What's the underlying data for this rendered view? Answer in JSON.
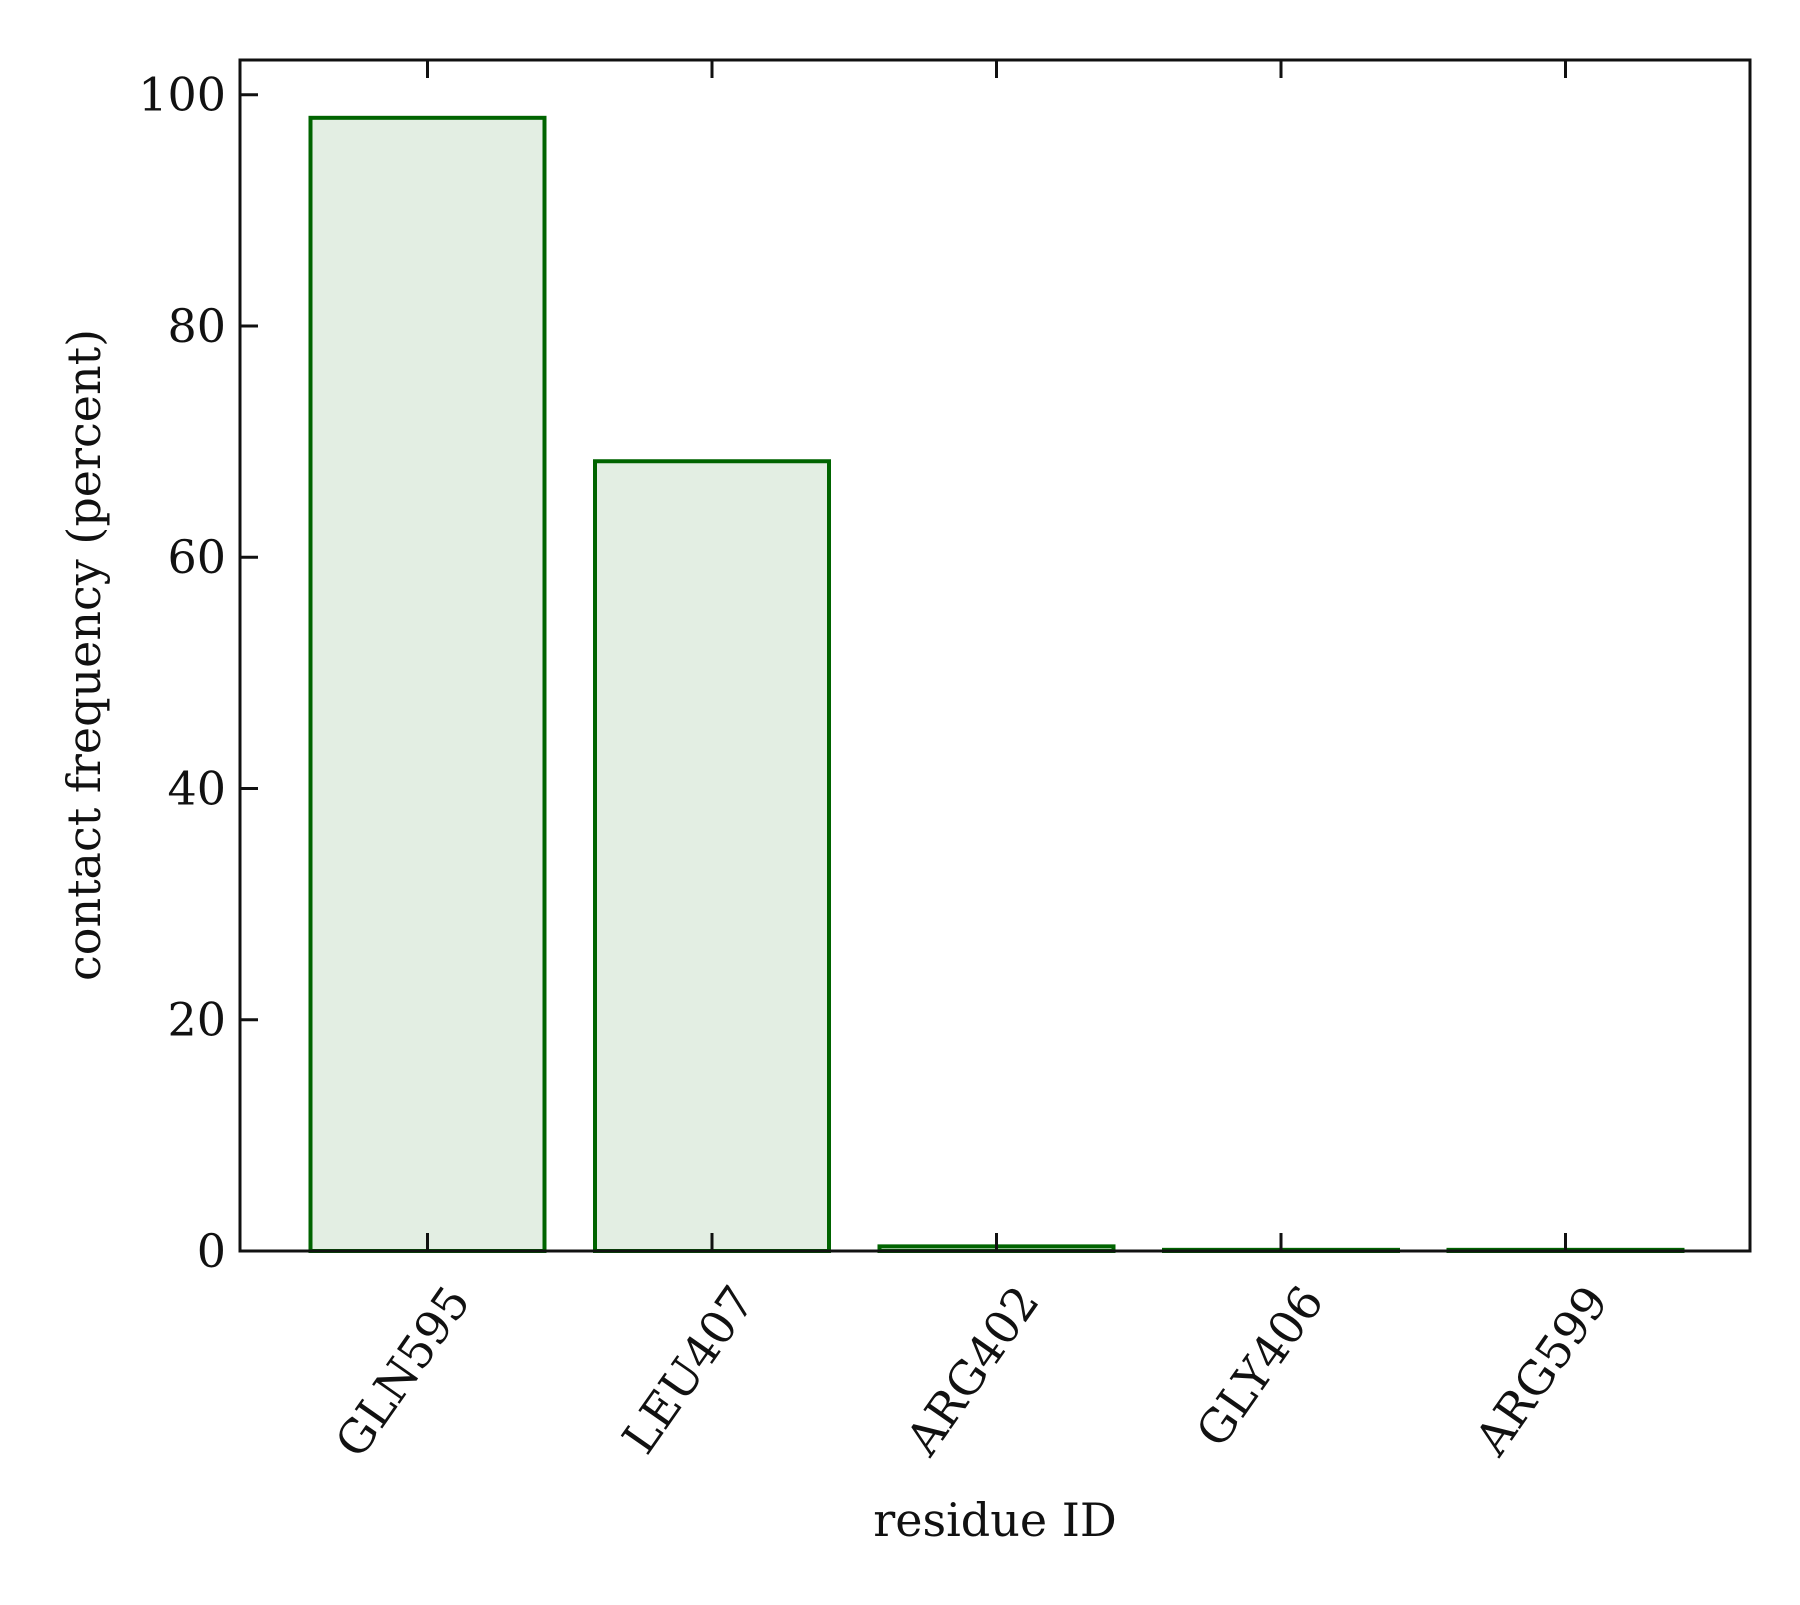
{
  "chart_data": {
    "type": "bar",
    "categories": [
      "GLN595",
      "LEU407",
      "ARG402",
      "GLY406",
      "ARG599"
    ],
    "values": [
      98,
      68.3,
      0.4,
      0.1,
      0.1
    ],
    "title": "",
    "xlabel": "residue ID",
    "ylabel": "contact frequency (percent)",
    "ylim": [
      0,
      103
    ],
    "yticks": [
      0,
      20,
      40,
      60,
      80,
      100
    ],
    "grid": false,
    "legend": "none",
    "colors": {
      "bar_fill": "#e3eee3",
      "bar_edge": "#006400",
      "axis": "#111111"
    }
  }
}
